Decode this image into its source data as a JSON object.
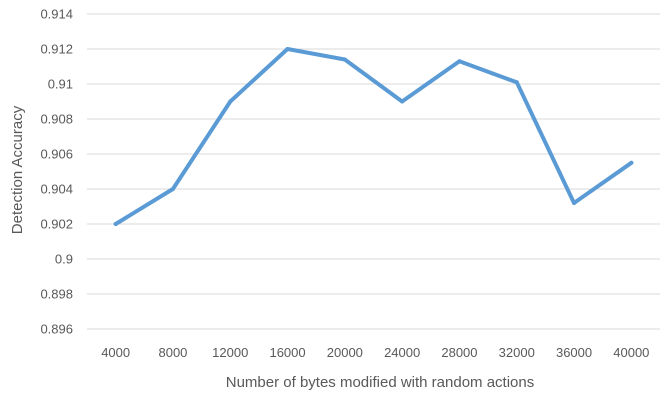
{
  "chart_data": {
    "type": "line",
    "title": "",
    "xlabel": "Number of bytes modified with random actions",
    "ylabel": "Detection Accuracy",
    "categories": [
      "4000",
      "8000",
      "12000",
      "16000",
      "20000",
      "24000",
      "28000",
      "32000",
      "36000",
      "40000"
    ],
    "series": [
      {
        "values": [
          0.902,
          0.904,
          0.909,
          0.912,
          0.9114,
          0.909,
          0.9113,
          0.9101,
          0.9032,
          0.9055
        ]
      }
    ],
    "ylim": [
      0.896,
      0.914
    ],
    "yticks": [
      "0.896",
      "0.898",
      "0.9",
      "0.902",
      "0.904",
      "0.906",
      "0.908",
      "0.91",
      "0.912",
      "0.914"
    ],
    "grid": true,
    "legend": "none",
    "colors": {
      "line": "#5B9BD5",
      "grid": "#D9D9D9",
      "text": "#595959"
    }
  }
}
